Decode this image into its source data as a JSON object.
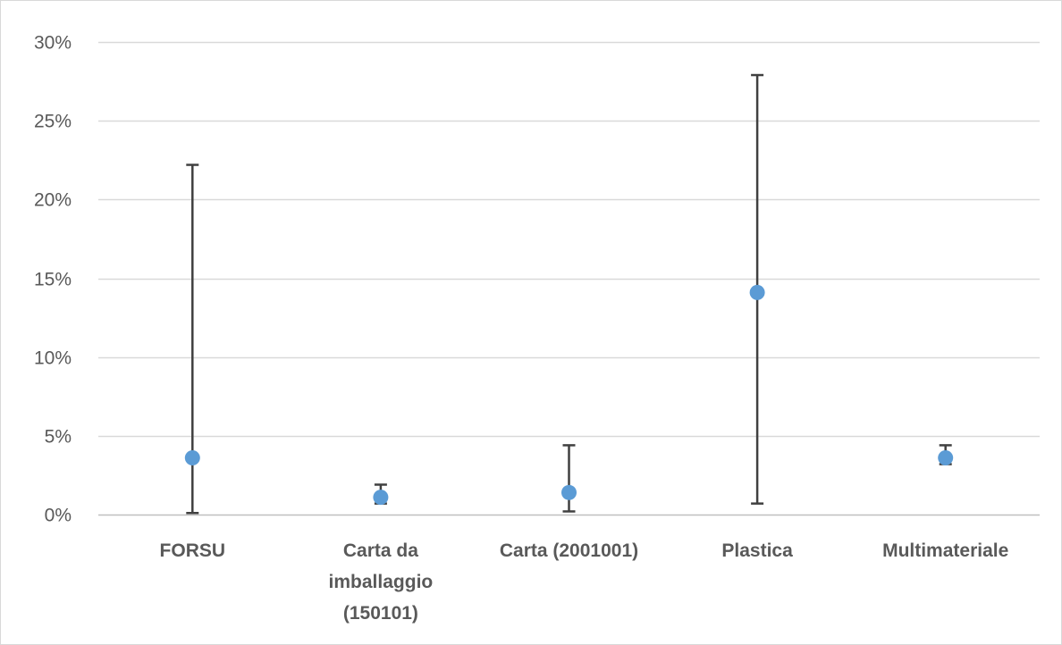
{
  "chart_data": {
    "type": "scatter",
    "title": "",
    "xlabel": "",
    "ylabel": "",
    "ylim": [
      0,
      0.3
    ],
    "y_ticks": [
      0,
      0.05,
      0.1,
      0.15,
      0.2,
      0.25,
      0.3
    ],
    "y_tick_labels": [
      "0%",
      "5%",
      "10%",
      "15%",
      "20%",
      "25%",
      "30%"
    ],
    "grid": "horizontal",
    "categories": [
      "FORSU",
      "Carta da imballaggio (150101)",
      "Carta (2001001)",
      "Plastica",
      "Multimateriale"
    ],
    "category_label_lines": [
      [
        "FORSU"
      ],
      [
        "Carta da",
        "imballaggio",
        "(150101)"
      ],
      [
        "Carta (2001001)"
      ],
      [
        "Plastica"
      ],
      [
        "Multimateriale"
      ]
    ],
    "values": [
      0.036,
      0.011,
      0.014,
      0.141,
      0.036
    ],
    "error_low": [
      0.001,
      0.007,
      0.002,
      0.007,
      0.032
    ],
    "error_high": [
      0.222,
      0.019,
      0.044,
      0.279,
      0.044
    ],
    "colors": {
      "marker": "#5b9bd5",
      "error_bar": "#404040",
      "grid": "#d9d9d9",
      "axis": "#bfbfbf",
      "text": "#595959"
    }
  }
}
